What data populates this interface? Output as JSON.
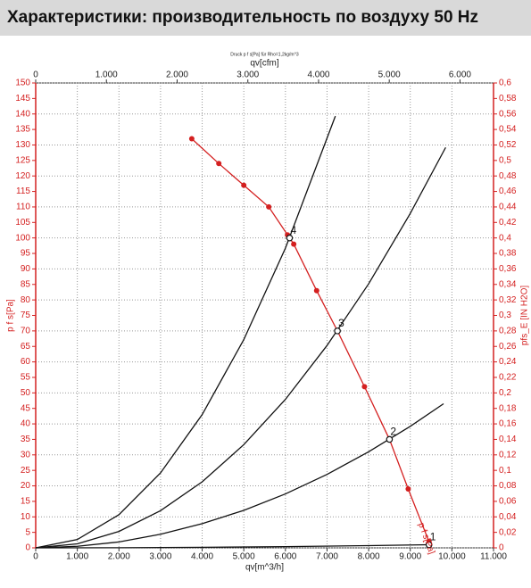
{
  "header": {
    "title": "Характеристики: производительность по воздуху 50 Hz"
  },
  "chart_data": {
    "type": "line",
    "subtitle": "Druck p f s[Pa] für Rho=1,2kg/m^3",
    "xlabel": "qv[m^3/h]",
    "x2label": "qv[cfm]",
    "ylabel": "p f s[Pa]",
    "y2label": "pfs_E [IN H2O]",
    "curve_label": "p f s[Pa]",
    "grid": true,
    "xlim": [
      0,
      11000
    ],
    "xticks": [
      0,
      {
        "value": 1000,
        "label": "1.000"
      },
      {
        "value": 2000,
        "label": "2.000"
      },
      {
        "value": 3000,
        "label": "3.000"
      },
      {
        "value": 4000,
        "label": "4.000"
      },
      {
        "value": 5000,
        "label": "5.000"
      },
      {
        "value": 6000,
        "label": "6.000"
      },
      {
        "value": 7000,
        "label": "7.000"
      },
      {
        "value": 8000,
        "label": "8.000"
      },
      {
        "value": 9000,
        "label": "9.000"
      },
      {
        "value": 10000,
        "label": "10.000"
      },
      {
        "value": 11000,
        "label": "11.000"
      }
    ],
    "x2lim": [
      0,
      6474
    ],
    "x2ticks": [
      0,
      {
        "value": 1000,
        "label": "1.000"
      },
      {
        "value": 2000,
        "label": "2.000"
      },
      {
        "value": 3000,
        "label": "3.000"
      },
      {
        "value": 4000,
        "label": "4.000"
      },
      {
        "value": 5000,
        "label": "5.000"
      },
      {
        "value": 6000,
        "label": "6.000"
      }
    ],
    "ylim": [
      0,
      150
    ],
    "yticks": [
      0,
      5,
      10,
      15,
      20,
      25,
      30,
      35,
      40,
      45,
      50,
      55,
      60,
      65,
      70,
      75,
      80,
      85,
      90,
      95,
      100,
      105,
      110,
      115,
      120,
      125,
      130,
      135,
      140,
      145,
      150
    ],
    "y2lim": [
      0,
      0.6
    ],
    "y2ticks": [
      0,
      {
        "value": 0.02,
        "label": "0,02"
      },
      {
        "value": 0.04,
        "label": "0,04"
      },
      {
        "value": 0.06,
        "label": "0,06"
      },
      {
        "value": 0.08,
        "label": "0,08"
      },
      {
        "value": 0.1,
        "label": "0,1"
      },
      {
        "value": 0.12,
        "label": "0,12"
      },
      {
        "value": 0.14,
        "label": "0,14"
      },
      {
        "value": 0.16,
        "label": "0,16"
      },
      {
        "value": 0.18,
        "label": "0,18"
      },
      {
        "value": 0.2,
        "label": "0,2"
      },
      {
        "value": 0.22,
        "label": "0,22"
      },
      {
        "value": 0.24,
        "label": "0,24"
      },
      {
        "value": 0.26,
        "label": "0,26"
      },
      {
        "value": 0.28,
        "label": "0,28"
      },
      {
        "value": 0.3,
        "label": "0,3"
      },
      {
        "value": 0.32,
        "label": "0,32"
      },
      {
        "value": 0.34,
        "label": "0,34"
      },
      {
        "value": 0.36,
        "label": "0,36"
      },
      {
        "value": 0.38,
        "label": "0,38"
      },
      {
        "value": 0.4,
        "label": "0,4"
      },
      {
        "value": 0.42,
        "label": "0,42"
      },
      {
        "value": 0.44,
        "label": "0,44"
      },
      {
        "value": 0.46,
        "label": "0,46"
      },
      {
        "value": 0.48,
        "label": "0,48"
      },
      {
        "value": 0.5,
        "label": "0,5"
      },
      {
        "value": 0.52,
        "label": "0,52"
      },
      {
        "value": 0.54,
        "label": "0,54"
      },
      {
        "value": 0.56,
        "label": "0,56"
      },
      {
        "value": 0.58,
        "label": "0,58"
      },
      {
        "value": 0.6,
        "label": "0,6"
      }
    ],
    "axis_color": "#d42020",
    "series": [
      {
        "color": "#d42020",
        "markers": true,
        "x": [
          3750,
          4400,
          5000,
          5600,
          6050,
          6200,
          6750,
          7250,
          7900,
          8500,
          8950,
          9450,
          9500
        ],
        "values": [
          132,
          124,
          117,
          110,
          101,
          98,
          83,
          70,
          52,
          35,
          19,
          2,
          0
        ]
      },
      {
        "color": "#111111",
        "markers": false,
        "x": [
          0,
          1000,
          2000,
          3000,
          4000,
          5000,
          6000,
          7200
        ],
        "values": [
          0,
          2.7,
          10.7,
          24.2,
          43,
          67.2,
          96.7,
          139.3
        ]
      },
      {
        "color": "#111111",
        "markers": false,
        "x": [
          0,
          1000,
          2000,
          3000,
          4000,
          5000,
          6000,
          7000,
          8000,
          9000,
          9850
        ],
        "values": [
          0,
          1.3,
          5.3,
          12,
          21.3,
          33.3,
          47.9,
          65.3,
          85.2,
          107.9,
          129.2
        ]
      },
      {
        "color": "#111111",
        "markers": false,
        "x": [
          0,
          1000,
          2000,
          3000,
          4000,
          5000,
          6000,
          7000,
          8000,
          9000,
          9800
        ],
        "values": [
          0,
          0.5,
          1.9,
          4.4,
          7.8,
          12.1,
          17.4,
          23.7,
          31,
          39.2,
          46.5
        ]
      },
      {
        "color": "#111111",
        "markers": false,
        "x": [
          0,
          2000,
          4000,
          6000,
          8000,
          9450
        ],
        "values": [
          0,
          0.04,
          0.18,
          0.4,
          0.72,
          1
        ]
      }
    ],
    "points": {
      "labels": [
        "4",
        "3",
        "2",
        "1"
      ],
      "x": [
        6100,
        7250,
        8500,
        9450
      ],
      "values": [
        100,
        70,
        35,
        1
      ]
    }
  }
}
